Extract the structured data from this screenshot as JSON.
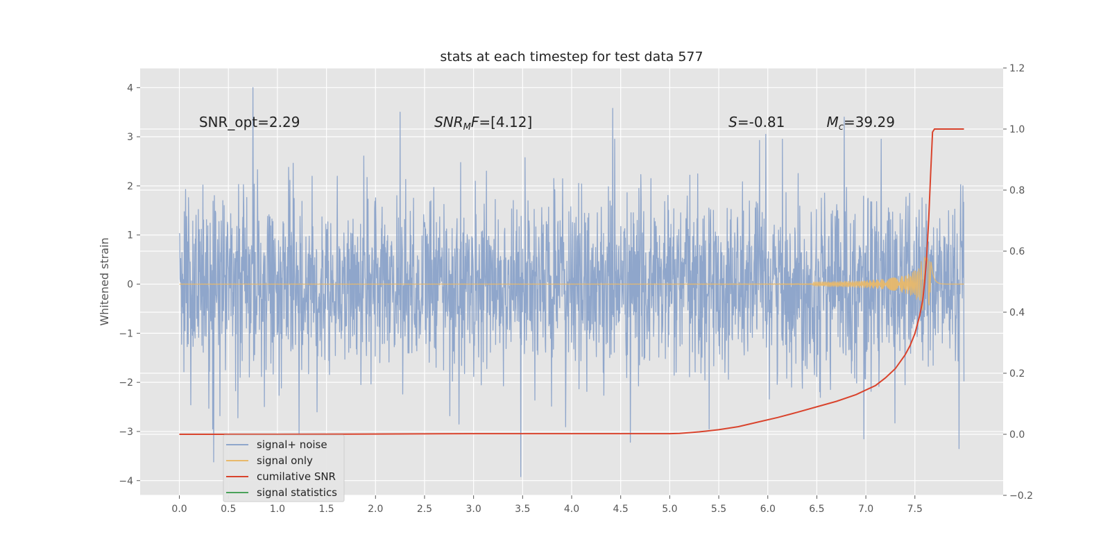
{
  "chart_data": {
    "type": "line",
    "title": "stats at each timestep for test data 577",
    "xlabel": "",
    "ylabel": "Whitened strain",
    "y2label": "",
    "xlim": [
      -0.4,
      8.4
    ],
    "ylim": [
      -4.3,
      4.4
    ],
    "y2lim": [
      -0.2,
      1.2
    ],
    "xticks": [
      0.0,
      0.5,
      1.0,
      1.5,
      2.0,
      2.5,
      3.0,
      3.5,
      4.0,
      4.5,
      5.0,
      5.5,
      6.0,
      6.5,
      7.0,
      7.5
    ],
    "xtick_labels": [
      "0.0",
      "0.5",
      "1.0",
      "1.5",
      "2.0",
      "2.5",
      "3.0",
      "3.5",
      "4.0",
      "4.5",
      "5.0",
      "5.5",
      "6.0",
      "6.5",
      "7.0",
      "7.5"
    ],
    "yticks": [
      -4,
      -3,
      -2,
      -1,
      0,
      1,
      2,
      3,
      4
    ],
    "ytick_labels": [
      "−4",
      "−3",
      "−2",
      "−1",
      "0",
      "1",
      "2",
      "3",
      "4"
    ],
    "y2ticks": [
      -0.2,
      0.0,
      0.2,
      0.4,
      0.6,
      0.8,
      1.0,
      1.2
    ],
    "y2tick_labels": [
      "−0.2",
      "0.0",
      "0.2",
      "0.4",
      "0.6",
      "0.8",
      "1.0",
      "1.2"
    ],
    "grid": true,
    "legend_placement": "lower-left",
    "annotations": [
      {
        "text": "SNR_opt=2.29",
        "x": 0.2,
        "y": 3.2
      },
      {
        "text": "SNR_MF=[4.12]",
        "x": 2.6,
        "y": 3.2
      },
      {
        "text": "S=-0.81",
        "x": 5.6,
        "y": 3.2
      },
      {
        "text": "M_c=39.29",
        "x": 6.6,
        "y": 3.2
      }
    ],
    "series": [
      {
        "name": "signal+ noise",
        "color": "#8fa6cb",
        "axis": "left",
        "x_range": [
          0.0,
          8.0
        ],
        "samples": 2400,
        "noise_sigma": 0.9,
        "peaks": [
          {
            "x": 0.75,
            "y": 4.0
          },
          {
            "x": 2.25,
            "y": 3.5
          },
          {
            "x": 4.42,
            "y": 3.58
          },
          {
            "x": 6.78,
            "y": 3.4
          },
          {
            "x": 5.98,
            "y": 3.05
          },
          {
            "x": 3.48,
            "y": -3.92
          },
          {
            "x": 0.35,
            "y": -3.62
          },
          {
            "x": 4.6,
            "y": -3.22
          },
          {
            "x": 7.95,
            "y": -3.35
          },
          {
            "x": 1.22,
            "y": -3.1
          },
          {
            "x": 2.85,
            "y": -2.85
          },
          {
            "x": 6.98,
            "y": -3.15
          }
        ]
      },
      {
        "name": "signal only",
        "color": "#e8b86a",
        "axis": "left",
        "x_range": [
          0.0,
          8.0
        ],
        "chirp_peak_x": 7.66,
        "chirp_amplitude": 0.55
      },
      {
        "name": "cumilative SNR",
        "color": "#d9432c",
        "axis": "right",
        "x": [
          0.0,
          1.0,
          2.0,
          3.0,
          4.0,
          5.0,
          5.1,
          5.3,
          5.5,
          5.7,
          5.9,
          6.1,
          6.3,
          6.5,
          6.7,
          6.9,
          7.0,
          7.1,
          7.2,
          7.3,
          7.4,
          7.45,
          7.5,
          7.55,
          7.58,
          7.6,
          7.62,
          7.64,
          7.66,
          7.68,
          7.7,
          8.0
        ],
        "values": [
          0.0,
          0.0,
          0.001,
          0.002,
          0.002,
          0.002,
          0.003,
          0.008,
          0.015,
          0.025,
          0.04,
          0.055,
          0.072,
          0.09,
          0.108,
          0.13,
          0.145,
          0.16,
          0.185,
          0.215,
          0.26,
          0.29,
          0.33,
          0.39,
          0.44,
          0.5,
          0.58,
          0.7,
          0.85,
          0.99,
          1.0,
          1.0
        ]
      },
      {
        "name": "signal statistics",
        "color": "#4aa25a",
        "axis": "left",
        "x": [],
        "values": []
      }
    ],
    "legend": [
      "signal+ noise",
      "signal only",
      "cumilative SNR",
      "signal statistics"
    ]
  }
}
